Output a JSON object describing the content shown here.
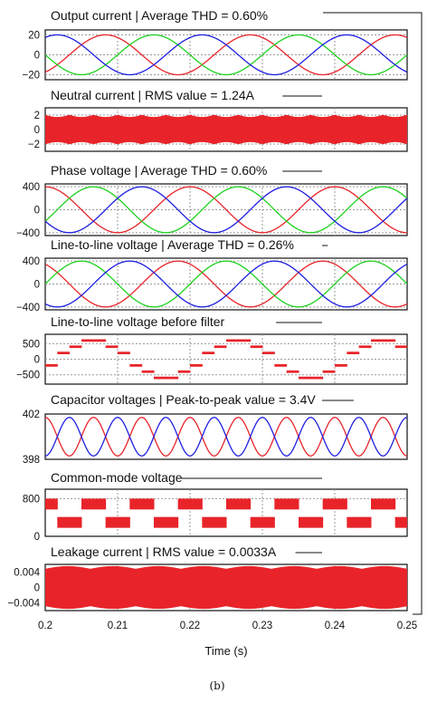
{
  "caption": "(b)",
  "colors": {
    "red": "#e8242a",
    "green": "#1fd11f",
    "blue": "#1f1fe0",
    "frame": "#111111",
    "grid": "#9a9a9a"
  },
  "chart_data": [
    {
      "type": "line",
      "title": "Output current | Average THD = 0.60%",
      "xlim": [
        0.2,
        0.25
      ],
      "ylim": [
        -25,
        25
      ],
      "yticks": [
        "20",
        "0",
        "−20"
      ],
      "grid": true,
      "series": [
        {
          "color": "red",
          "amplitude": 20,
          "frequency_hz": 50,
          "phase_deg": -60
        },
        {
          "color": "green",
          "amplitude": 20,
          "frequency_hz": 50,
          "phase_deg": 180
        },
        {
          "color": "blue",
          "amplitude": 20,
          "frequency_hz": 50,
          "phase_deg": 60
        }
      ]
    },
    {
      "type": "area",
      "title": "Neutral current | RMS value = 1.24A",
      "xlim": [
        0.2,
        0.25
      ],
      "ylim": [
        -3,
        3
      ],
      "yticks": [
        "2",
        "0",
        "−2"
      ],
      "grid": true,
      "series": [
        {
          "color": "red",
          "envelope": [
            2.0,
            1.7
          ],
          "envelope_cycles": 15
        }
      ]
    },
    {
      "type": "line",
      "title": "Phase voltage | Average THD = 0.60%",
      "xlim": [
        0.2,
        0.25
      ],
      "ylim": [
        -450,
        450
      ],
      "yticks": [
        "400",
        "0",
        "−400"
      ],
      "grid": true,
      "series": [
        {
          "color": "red",
          "amplitude": 400,
          "frequency_hz": 50,
          "phase_deg": 90
        },
        {
          "color": "green",
          "amplitude": 400,
          "frequency_hz": 50,
          "phase_deg": -30
        },
        {
          "color": "blue",
          "amplitude": 400,
          "frequency_hz": 50,
          "phase_deg": -150
        }
      ]
    },
    {
      "type": "line",
      "title": "Line-to-line voltage | Average THD = 0.26%",
      "xlim": [
        0.2,
        0.25
      ],
      "ylim": [
        -450,
        450
      ],
      "yticks": [
        "400",
        "0",
        "−400"
      ],
      "grid": true,
      "series": [
        {
          "color": "red",
          "amplitude": 400,
          "frequency_hz": 50,
          "phase_deg": 120
        },
        {
          "color": "green",
          "amplitude": 400,
          "frequency_hz": 50,
          "phase_deg": 0
        },
        {
          "color": "blue",
          "amplitude": 400,
          "frequency_hz": 50,
          "phase_deg": -120
        }
      ]
    },
    {
      "type": "line",
      "title": "Line-to-line voltage before filter",
      "xlim": [
        0.2,
        0.25
      ],
      "ylim": [
        -800,
        800
      ],
      "yticks": [
        "500",
        "0",
        "−500"
      ],
      "grid": true,
      "series": [
        {
          "color": "red",
          "step_levels": [
            -200,
            200,
            400,
            600,
            600,
            400,
            200,
            -200,
            -400,
            -600,
            -600,
            -400
          ],
          "frequency_hz": 50,
          "phase_deg": 0,
          "ripple": 80
        }
      ]
    },
    {
      "type": "line",
      "title": "Capacitor voltages | Peak-to-peak value = 3.4V",
      "xlim": [
        0.2,
        0.25
      ],
      "ylim": [
        398,
        402
      ],
      "yticks": [
        "402",
        "398"
      ],
      "grid": false,
      "series": [
        {
          "color": "red",
          "offset": 400,
          "amplitude": 1.7,
          "frequency_hz": 150,
          "phase_deg": 90
        },
        {
          "color": "blue",
          "offset": 400,
          "amplitude": 1.7,
          "frequency_hz": 150,
          "phase_deg": -90
        }
      ]
    },
    {
      "type": "area",
      "title": "Common-mode voltage",
      "xlim": [
        0.2,
        0.25
      ],
      "ylim": [
        0,
        1000
      ],
      "yticks": [
        "800",
        "0"
      ],
      "grid": true,
      "series": [
        {
          "color": "red",
          "square_high": [
            570,
            800
          ],
          "square_low": [
            180,
            410
          ],
          "frequency_hz": 150
        }
      ]
    },
    {
      "type": "area",
      "title": "Leakage current | RMS value = 0.0033A",
      "xlim": [
        0.2,
        0.25
      ],
      "ylim": [
        -0.006,
        0.006
      ],
      "yticks": [
        "0.004",
        "0",
        "−0.004"
      ],
      "grid": true,
      "series": [
        {
          "color": "red",
          "envelope": [
            0.0048,
            0.0055
          ],
          "envelope_cycles": 8
        }
      ]
    }
  ],
  "xaxis": {
    "label": "Time (s)",
    "ticks": [
      "0.2",
      "0.21",
      "0.22",
      "0.23",
      "0.24",
      "0.25"
    ],
    "values": [
      0.2,
      0.21,
      0.22,
      0.23,
      0.24,
      0.25
    ]
  }
}
